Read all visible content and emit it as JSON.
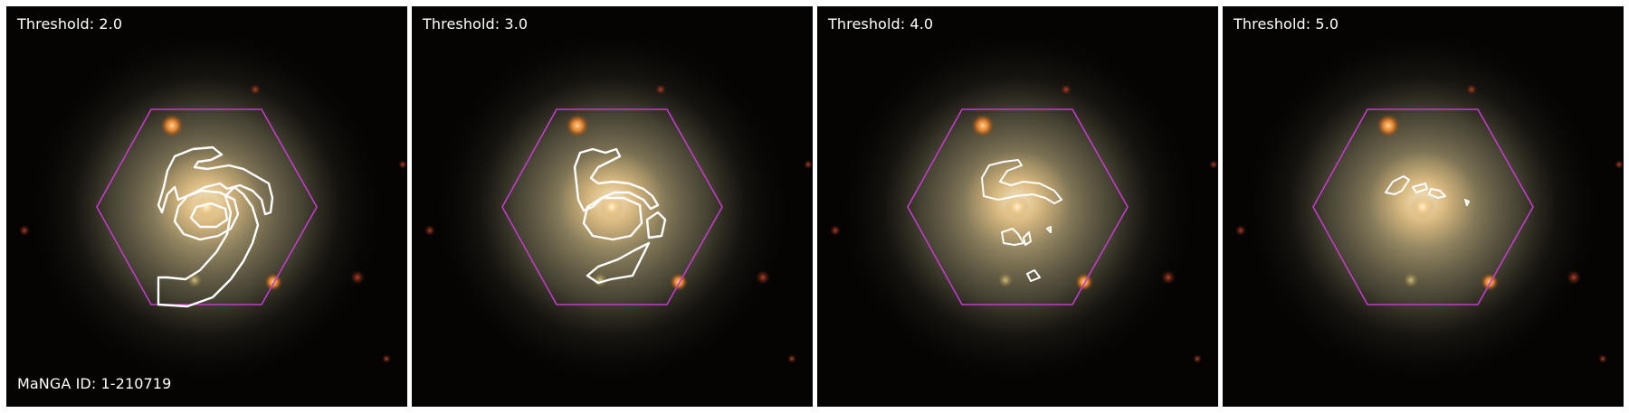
{
  "figure": {
    "panels": [
      {
        "threshold_label": "Threshold: 2.0"
      },
      {
        "threshold_label": "Threshold: 3.0"
      },
      {
        "threshold_label": "Threshold: 4.0"
      },
      {
        "threshold_label": "Threshold: 5.0"
      }
    ],
    "galaxy_id_label": "MaNGA ID: 1-210719"
  },
  "colors": {
    "background": "#050403",
    "galaxy_core": "#f3d7a0",
    "galaxy_disk": "#a89a70",
    "hexagon": "#c23cc8",
    "contour": "#ffffff",
    "star_orange": "#f08a2c"
  }
}
